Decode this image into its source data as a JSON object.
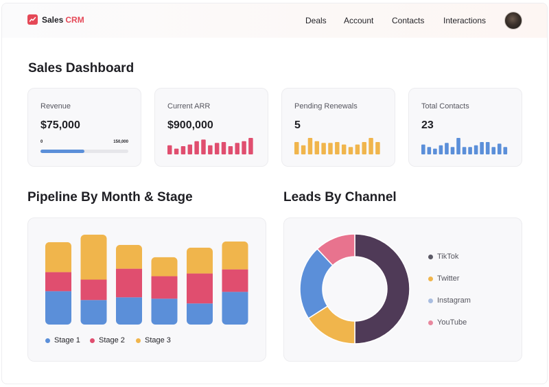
{
  "app": {
    "name": "Sales",
    "name_accent": "CRM",
    "logo_icon": "trend-line-icon",
    "brand_color": "#e54857"
  },
  "nav": {
    "items": [
      {
        "label": "Deals"
      },
      {
        "label": "Account"
      },
      {
        "label": "Contacts"
      },
      {
        "label": "Interactions"
      }
    ],
    "avatar_icon": "user-avatar-icon"
  },
  "page": {
    "title": "Sales Dashboard"
  },
  "kpis": [
    {
      "label": "Revenue",
      "value": "$75,000",
      "progress": {
        "min_label": "0",
        "max_label": "150,000",
        "fraction": 0.5,
        "color": "#5b8fd9"
      }
    },
    {
      "label": "Current ARR",
      "value": "$900,000",
      "sparkline": {
        "color": "#e04e6f",
        "values": [
          0.55,
          0.35,
          0.5,
          0.6,
          0.8,
          0.9,
          0.55,
          0.7,
          0.75,
          0.5,
          0.7,
          0.8,
          1.0
        ]
      }
    },
    {
      "label": "Pending Renewals",
      "value": "5",
      "sparkline": {
        "color": "#f0b54c",
        "values": [
          0.75,
          0.55,
          1.0,
          0.8,
          0.7,
          0.7,
          0.75,
          0.6,
          0.45,
          0.6,
          0.75,
          1.0,
          0.75
        ]
      }
    },
    {
      "label": "Total Contacts",
      "value": "23",
      "sparkline": {
        "color": "#5b8fd9",
        "values": [
          0.6,
          0.45,
          0.35,
          0.55,
          0.7,
          0.45,
          1.0,
          0.45,
          0.45,
          0.55,
          0.75,
          0.75,
          0.45,
          0.65,
          0.45
        ]
      }
    }
  ],
  "pipeline": {
    "title": "Pipeline By Month & Stage",
    "chart_data": {
      "type": "bar",
      "stacked": true,
      "categories": [
        "",
        "",
        "",
        "",
        "",
        ""
      ],
      "series": [
        {
          "name": "Stage 1",
          "color": "#5b8fd9",
          "values": [
            49,
            36,
            40,
            38,
            31,
            48
          ]
        },
        {
          "name": "Stage 2",
          "color": "#e04e6f",
          "values": [
            28,
            30,
            42,
            33,
            44,
            33
          ]
        },
        {
          "name": "Stage 3",
          "color": "#f0b54c",
          "values": [
            44,
            66,
            35,
            28,
            38,
            41
          ]
        }
      ],
      "grid": false,
      "legend": "bottom"
    }
  },
  "leads": {
    "title": "Leads By Channel",
    "chart_data": {
      "type": "pie",
      "donut": true,
      "labels": [
        "TikTok",
        "Twitter",
        "Instagram",
        "YouTube"
      ],
      "values": [
        50,
        16,
        22,
        12
      ],
      "colors": [
        "#4f3a57",
        "#f0b54c",
        "#5b8fd9",
        "#e8738e"
      ],
      "legend_colors": [
        "#5b5966",
        "#f0b54c",
        "#a9bde0",
        "#e8889e"
      ],
      "legend": "right"
    }
  }
}
